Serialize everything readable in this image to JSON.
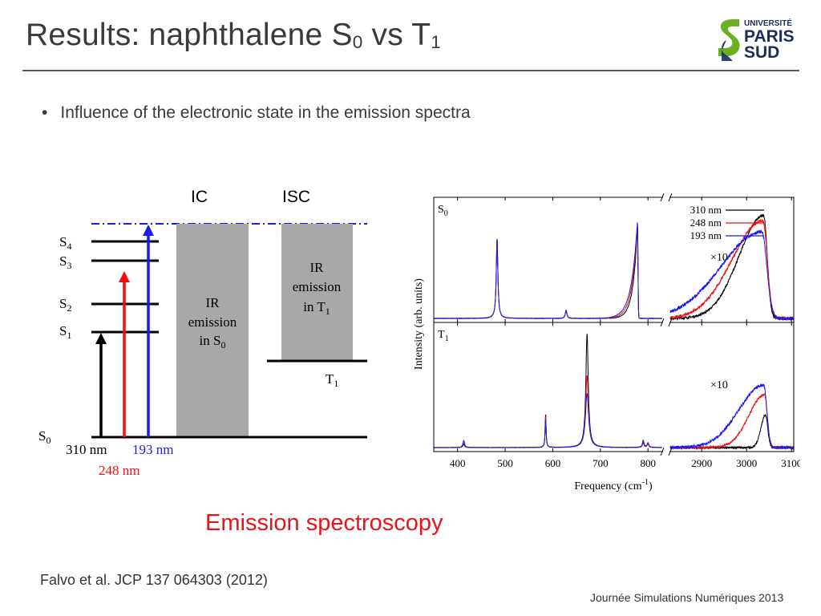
{
  "slide": {
    "title_main": "Results: naphthalene S",
    "title_sub1": "0",
    "title_mid": " vs T",
    "title_sub2": "1",
    "bullet": "Influence of the electronic state in the emission spectra",
    "bullet_marker": "•",
    "caption": "Emission spectroscopy",
    "citation": "Falvo et al. JCP 137 064303 (2012)",
    "footer": "Journée Simulations Numériques 2013"
  },
  "logo": {
    "line1": "UNIVERSITÉ",
    "line2": "PARIS",
    "line3": "SUD",
    "colors": {
      "green": "#6ab023",
      "navy": "#1c2d5a"
    }
  },
  "diagram": {
    "ic_label": "IC",
    "isc_label": "ISC",
    "levels": [
      {
        "main": "S",
        "sub": "4"
      },
      {
        "main": "S",
        "sub": "3"
      },
      {
        "main": "S",
        "sub": "2"
      },
      {
        "main": "S",
        "sub": "1"
      },
      {
        "main": "S",
        "sub": "0"
      }
    ],
    "t1_level": {
      "main": "T",
      "sub": "1"
    },
    "box_ic": {
      "line1": "IR",
      "line2": "emission",
      "line3_main": "in S",
      "line3_sub": "0"
    },
    "box_isc": {
      "line1": "IR",
      "line2": "emission",
      "line3_main": "in T",
      "line3_sub": "1"
    },
    "excitations": [
      {
        "label": "310 nm",
        "color": "#000000"
      },
      {
        "label": "248 nm",
        "color": "#ee1111"
      },
      {
        "label": "193 nm",
        "color": "#1a1aee"
      }
    ],
    "colors": {
      "box": "#a8a8a8",
      "dashed_line": "#1a1aee"
    }
  },
  "chart_data": {
    "type": "line",
    "panels": [
      {
        "label_main": "S",
        "label_sub": "0",
        "scale_note": "×10",
        "series": [
          {
            "name": "310 nm",
            "color": "#000000",
            "peaks": [
              [
                483,
                1.0,
                2.0
              ],
              [
                628,
                0.1,
                2.0
              ],
              [
                778,
                1.15,
                6.0
              ]
            ],
            "ch_peak": [
              3038,
              1.28,
              55,
              8
            ],
            "noise": 0.015
          },
          {
            "name": "248 nm",
            "color": "#ee1111",
            "peaks": [
              [
                483,
                1.0,
                2.0
              ],
              [
                628,
                0.1,
                2.0
              ],
              [
                778,
                1.2,
                7.0
              ]
            ],
            "ch_peak": [
              3036,
              1.22,
              68,
              10
            ],
            "noise": 0.018
          },
          {
            "name": "193 nm",
            "color": "#1a1aee",
            "peaks": [
              [
                483,
                1.0,
                2.0
              ],
              [
                628,
                0.1,
                2.0
              ],
              [
                778,
                1.22,
                8.0
              ]
            ],
            "ch_peak": [
              3034,
              1.08,
              90,
              11
            ],
            "noise": 0.02
          }
        ]
      },
      {
        "label_main": "T",
        "label_sub": "1",
        "scale_note": "×10",
        "series": [
          {
            "name": "310 nm",
            "color": "#000000",
            "peaks": [
              [
                413,
                0.03,
                2.0
              ],
              [
                585,
                0.28,
                1.2
              ],
              [
                672,
                0.95,
                3.0
              ],
              [
                790,
                0.04,
                2.0
              ],
              [
                800,
                0.03,
                2.0
              ]
            ],
            "ch_peak": [
              3042,
              0.27,
              10,
              5
            ],
            "noise": 0.008
          },
          {
            "name": "248 nm",
            "color": "#ee1111",
            "peaks": [
              [
                413,
                0.05,
                2.0
              ],
              [
                585,
                0.26,
                1.2
              ],
              [
                672,
                0.6,
                3.5
              ],
              [
                790,
                0.05,
                2.0
              ],
              [
                800,
                0.03,
                2.0
              ]
            ],
            "ch_peak": [
              3040,
              0.44,
              35,
              6
            ],
            "noise": 0.01
          },
          {
            "name": "193 nm",
            "color": "#1a1aee",
            "peaks": [
              [
                413,
                0.06,
                2.0
              ],
              [
                585,
                0.24,
                1.2
              ],
              [
                672,
                0.45,
                4.0
              ],
              [
                790,
                0.06,
                2.0
              ],
              [
                800,
                0.04,
                2.0
              ]
            ],
            "ch_peak": [
              3038,
              0.52,
              55,
              7
            ],
            "noise": 0.012
          }
        ]
      }
    ],
    "x_low_range": [
      350,
      830
    ],
    "x_high_range": [
      2830,
      3105
    ],
    "x_ticks_low": [
      400,
      500,
      600,
      700,
      800
    ],
    "x_ticks_high": [
      2900,
      3000,
      3100
    ],
    "xlabel": "Frequency (cm",
    "xlabel_sup": "-1",
    "xlabel_end": ")",
    "ylabel": "Intensity (arb. units)",
    "legend": [
      "310 nm",
      "248 nm",
      "193 nm"
    ],
    "legend_position": "top-right"
  }
}
